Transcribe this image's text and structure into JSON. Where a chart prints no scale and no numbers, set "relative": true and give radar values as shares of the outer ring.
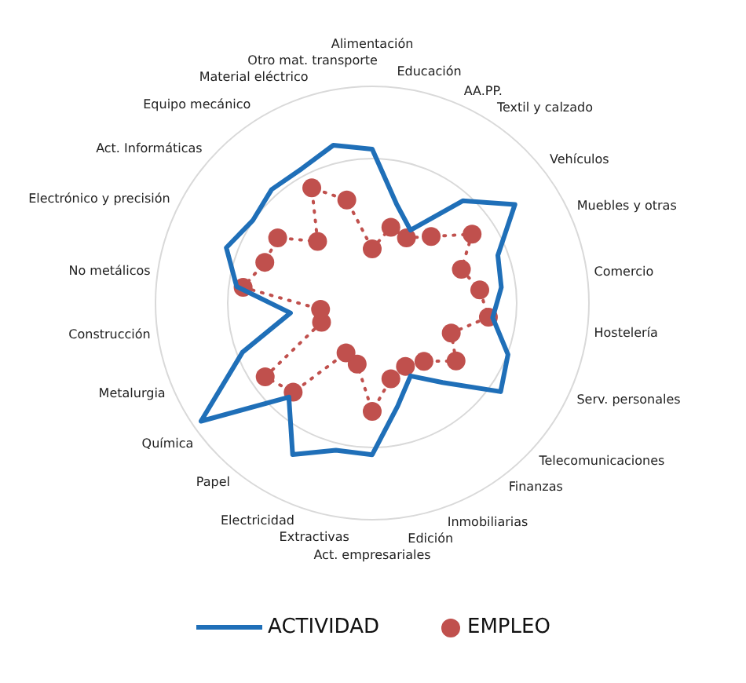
{
  "chart_data": {
    "type": "radar",
    "relative": true,
    "grid": true,
    "legend": "bottom",
    "categories": [
      "Alimentación",
      "Educación",
      "AA.PP.",
      "Textil y calzado",
      "Vehículos",
      "Muebles y otras",
      "Comercio",
      "Hostelería",
      "Serv. personales",
      "Telecomunicaciones",
      "Finanzas",
      "Inmobiliarias",
      "Edición",
      "Act. empresariales",
      "Extractivas",
      "Electricidad",
      "Papel",
      "Química",
      "Metalurgia",
      "Construcción",
      "No metálicos",
      "Electrónico y precisión",
      "Act. Informáticas",
      "Equipo mecánico",
      "Material eléctrico",
      "Otro mat. transporte"
    ],
    "series": [
      {
        "name": "ACTIVIDAD",
        "color": "#1f6fb8",
        "marker": "none",
        "line_style": "solid",
        "values": [
          0.71,
          0.47,
          0.38,
          0.63,
          0.8,
          0.62,
          0.6,
          0.56,
          0.67,
          0.72,
          0.49,
          0.38,
          0.49,
          0.7,
          0.7,
          0.79,
          0.58,
          0.96,
          0.64,
          0.38,
          0.63,
          0.72,
          0.67,
          0.7,
          0.7,
          0.75
        ]
      },
      {
        "name": "EMPLEO",
        "color": "#c0504d",
        "marker": "circle",
        "line_style": "dotted",
        "values": [
          0.25,
          0.36,
          0.34,
          0.41,
          0.56,
          0.44,
          0.5,
          0.54,
          0.39,
          0.47,
          0.36,
          0.33,
          0.36,
          0.5,
          0.29,
          0.26,
          0.55,
          0.6,
          0.25,
          0.24,
          0.6,
          0.53,
          0.53,
          0.38,
          0.6,
          0.49
        ]
      }
    ]
  }
}
